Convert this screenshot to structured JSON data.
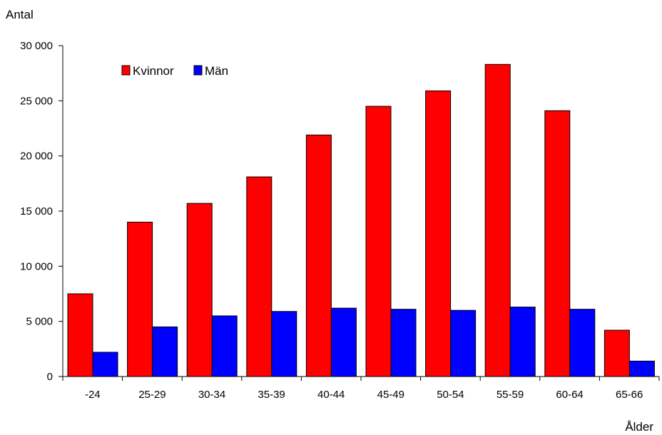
{
  "chart_data": {
    "type": "bar",
    "ylabel": "Antal",
    "xlabel": "Ålder",
    "categories": [
      "-24",
      "25-29",
      "30-34",
      "35-39",
      "40-44",
      "45-49",
      "50-54",
      "55-59",
      "60-64",
      "65-66"
    ],
    "series": [
      {
        "name": "Kvinnor",
        "color": "#ff0000",
        "values": [
          7500,
          14000,
          15700,
          18100,
          21900,
          24500,
          25900,
          28300,
          24100,
          4200
        ]
      },
      {
        "name": "Män",
        "color": "#0000ff",
        "values": [
          2200,
          4500,
          5500,
          5900,
          6200,
          6100,
          6000,
          6300,
          6100,
          1400
        ]
      }
    ],
    "ylim": [
      0,
      30000
    ],
    "yticks": [
      0,
      5000,
      10000,
      15000,
      20000,
      25000,
      30000
    ],
    "ytick_labels": [
      "0",
      "5 000",
      "10 000",
      "15 000",
      "20 000",
      "25 000",
      "30 000"
    ],
    "grid": false,
    "legend_position": "top-left"
  }
}
